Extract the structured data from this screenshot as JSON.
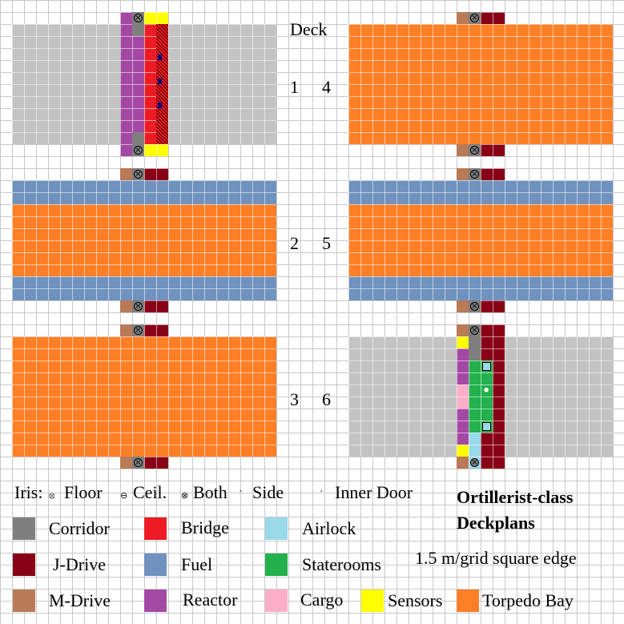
{
  "deck_heading": "Deck",
  "deck_numbers": [
    "1",
    "4",
    "2",
    "5",
    "3",
    "6"
  ],
  "iris_legend": {
    "label": "Iris:",
    "items": [
      "Floor",
      "Ceil.",
      "Both",
      "Side",
      "Inner Door"
    ]
  },
  "legend": [
    {
      "label": "Corridor",
      "color": "#7f7f7f"
    },
    {
      "label": "Bridge",
      "color": "#ed1c24"
    },
    {
      "label": "Airlock",
      "color": "#99d9ea"
    },
    {
      "label": "J-Drive",
      "color": "#880015"
    },
    {
      "label": "Fuel",
      "color": "#7092be"
    },
    {
      "label": "Staterooms",
      "color": "#22b14c"
    },
    {
      "label": "M-Drive",
      "color": "#b97a57"
    },
    {
      "label": "Reactor",
      "color": "#a349a4"
    },
    {
      "label": "Cargo",
      "color": "#ffaec9"
    },
    {
      "label": "Sensors",
      "color": "#ffff00"
    },
    {
      "label": "Torpedo Bay",
      "color": "#ff7f27"
    }
  ],
  "title_line1": "Ortillerist-class",
  "title_line2": "Deckplans",
  "scale": "1.5 m/grid square edge"
}
